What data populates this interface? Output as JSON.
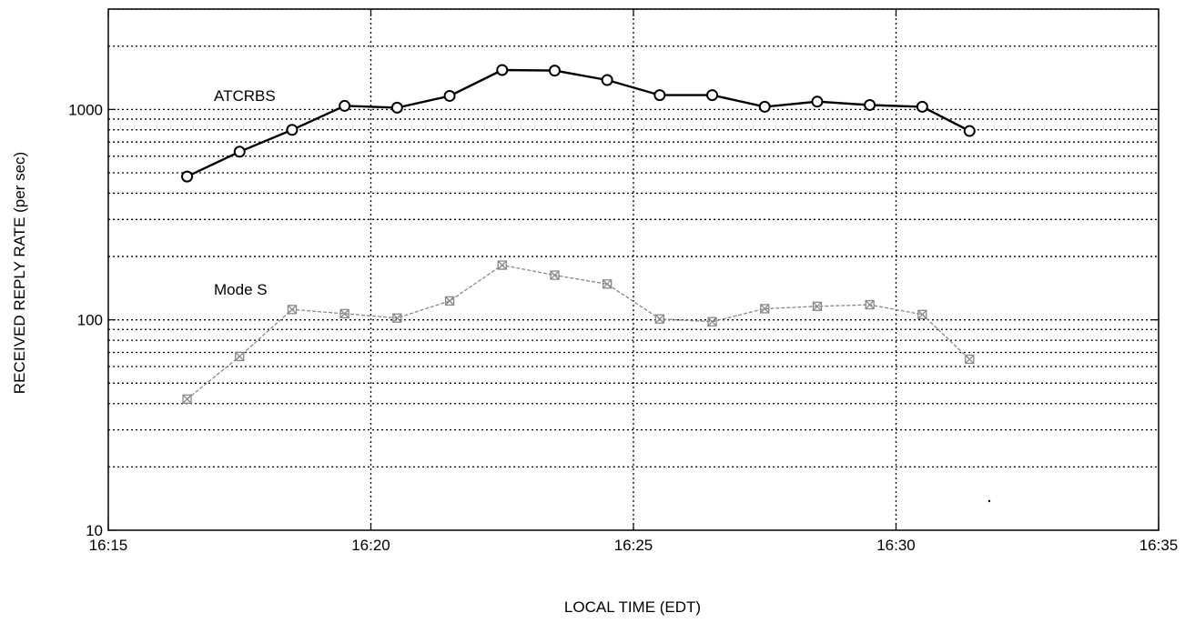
{
  "chart_data": {
    "type": "line",
    "title": "",
    "xlabel": "LOCAL TIME (EDT)",
    "ylabel": "RECEIVED REPLY RATE (per sec)",
    "x_tick_labels": [
      "16:15",
      "16:20",
      "16:25",
      "16:30",
      "16:35"
    ],
    "x_ticks": [
      "16:15",
      "16:20",
      "16:25",
      "16:30",
      "16:35"
    ],
    "xlim": [
      "16:15",
      "16:35"
    ],
    "y_tick_labels": [
      "10",
      "100",
      "1000"
    ],
    "y_ticks": [
      10,
      100,
      1000
    ],
    "ylim": [
      10,
      3000
    ],
    "y_scale": "log",
    "grid": true,
    "series": [
      {
        "name": "ATCRBS",
        "color": "#000000",
        "marker": "circle",
        "x": [
          "16:16:30",
          "16:17:30",
          "16:18:30",
          "16:19:30",
          "16:20:30",
          "16:21:30",
          "16:22:30",
          "16:23:30",
          "16:24:30",
          "16:25:30",
          "16:26:30",
          "16:27:30",
          "16:28:30",
          "16:29:30",
          "16:30:30",
          "16:31:24"
        ],
        "values": [
          480,
          630,
          800,
          1040,
          1020,
          1160,
          1540,
          1530,
          1380,
          1170,
          1170,
          1030,
          1090,
          1050,
          1030,
          790
        ]
      },
      {
        "name": "Mode S",
        "color": "#888888",
        "marker": "x-box",
        "x": [
          "16:16:30",
          "16:17:30",
          "16:18:30",
          "16:19:30",
          "16:20:30",
          "16:21:30",
          "16:22:30",
          "16:23:30",
          "16:24:30",
          "16:25:30",
          "16:26:30",
          "16:27:30",
          "16:28:30",
          "16:29:30",
          "16:30:30",
          "16:31:24"
        ],
        "values": [
          42,
          67,
          112,
          107,
          102,
          123,
          182,
          163,
          148,
          101,
          98,
          113,
          116,
          118,
          106,
          65
        ]
      }
    ]
  }
}
